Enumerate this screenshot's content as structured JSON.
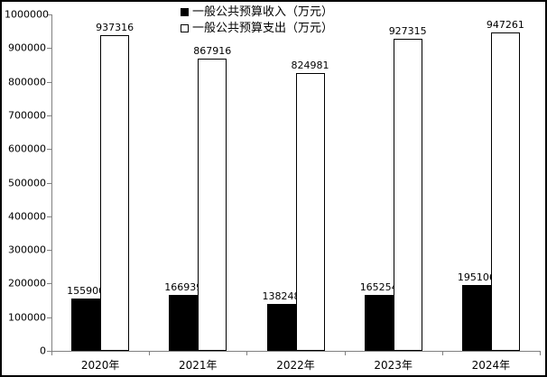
{
  "chart_data": {
    "type": "bar",
    "title": "",
    "xlabel": "",
    "ylabel": "",
    "categories": [
      "2020年",
      "2021年",
      "2022年",
      "2023年",
      "2024年"
    ],
    "series": [
      {
        "name": "一般公共预算收入（万元）",
        "swatch": "filled-black-square",
        "fill": "#000000",
        "values": [
          155900,
          166939,
          138248,
          165254,
          195106
        ]
      },
      {
        "name": "一般公共预算支出（万元）",
        "swatch": "open-white-square",
        "fill": "#ffffff",
        "values": [
          937316,
          867916,
          824981,
          927315,
          947261
        ]
      }
    ],
    "ylim": [
      0,
      1000000
    ],
    "ytick_step": 100000,
    "ytick_labels": [
      "0",
      "100000",
      "200000",
      "300000",
      "400000",
      "500000",
      "600000",
      "700000",
      "800000",
      "900000",
      "1000000"
    ],
    "grid": false,
    "legend_position": "top-center",
    "data_labels": true,
    "colors": {
      "axis": "#808080",
      "text": "#000000",
      "bar_border": "#000000",
      "background": "#ffffff",
      "frame_border": "#000000"
    }
  }
}
